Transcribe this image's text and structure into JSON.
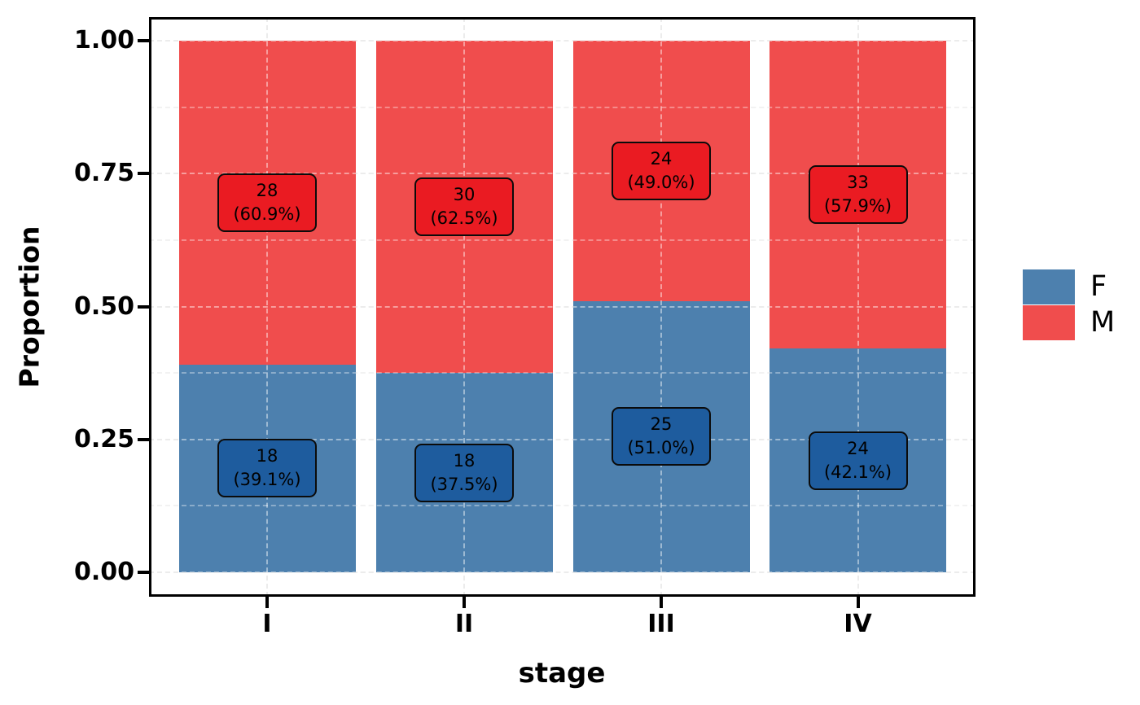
{
  "figure": {
    "background": "#ffffff"
  },
  "axes": {
    "y_title": "Proportion",
    "x_title": "stage",
    "y_ticks": [
      {
        "label": "0.00",
        "value": 0
      },
      {
        "label": "0.25",
        "value": 0.25
      },
      {
        "label": "0.50",
        "value": 0.5
      },
      {
        "label": "0.75",
        "value": 0.75
      },
      {
        "label": "1.00",
        "value": 1
      }
    ],
    "y_minor_gridlines": [
      0.125,
      0.375,
      0.625,
      0.875
    ],
    "x_ticks": [
      "I",
      "II",
      "III",
      "IV"
    ]
  },
  "legend": {
    "entries": [
      {
        "label": "F",
        "color": "#4d80ae"
      },
      {
        "label": "M",
        "color": "#f04d4d"
      }
    ]
  },
  "colors": {
    "bar_female": "#4d80ae",
    "bar_male": "#f04d4d",
    "label_box_female": "#1e5c9e",
    "label_box_male": "#ea1b22",
    "grid_major": "#dcdcdc",
    "grid_minor": "#ebebeb",
    "axis_text": "#000000"
  },
  "chart_data": {
    "type": "bar",
    "subtype": "stacked-proportion",
    "title": "",
    "xlabel": "stage",
    "ylabel": "Proportion",
    "categories": [
      "I",
      "II",
      "III",
      "IV"
    ],
    "series": [
      {
        "name": "F",
        "fill": "#4d80ae",
        "label_fill": "#1e5c9e",
        "proportions": [
          0.391,
          0.375,
          0.51,
          0.421
        ],
        "counts": [
          18,
          18,
          25,
          24
        ],
        "percent_labels": [
          "39.1%",
          "37.5%",
          "51.0%",
          "42.1%"
        ],
        "labels": [
          [
            "18",
            "(39.1%)"
          ],
          [
            "18",
            "(37.5%)"
          ],
          [
            "25",
            "(51.0%)"
          ],
          [
            "24",
            "(42.1%)"
          ]
        ]
      },
      {
        "name": "M",
        "fill": "#f04d4d",
        "label_fill": "#ea1b22",
        "proportions": [
          0.609,
          0.625,
          0.49,
          0.579
        ],
        "counts": [
          28,
          30,
          24,
          33
        ],
        "percent_labels": [
          "60.9%",
          "62.5%",
          "49.0%",
          "57.9%"
        ],
        "labels": [
          [
            "28",
            "(60.9%)"
          ],
          [
            "30",
            "(62.5%)"
          ],
          [
            "24",
            "(49.0%)"
          ],
          [
            "33",
            "(57.9%)"
          ]
        ]
      }
    ],
    "ylim": [
      0,
      1
    ],
    "grid": {
      "major_step": 0.25,
      "minor_step": 0.125,
      "style": "dashed",
      "vertical_at_categories": true
    },
    "legend_position": "right"
  }
}
